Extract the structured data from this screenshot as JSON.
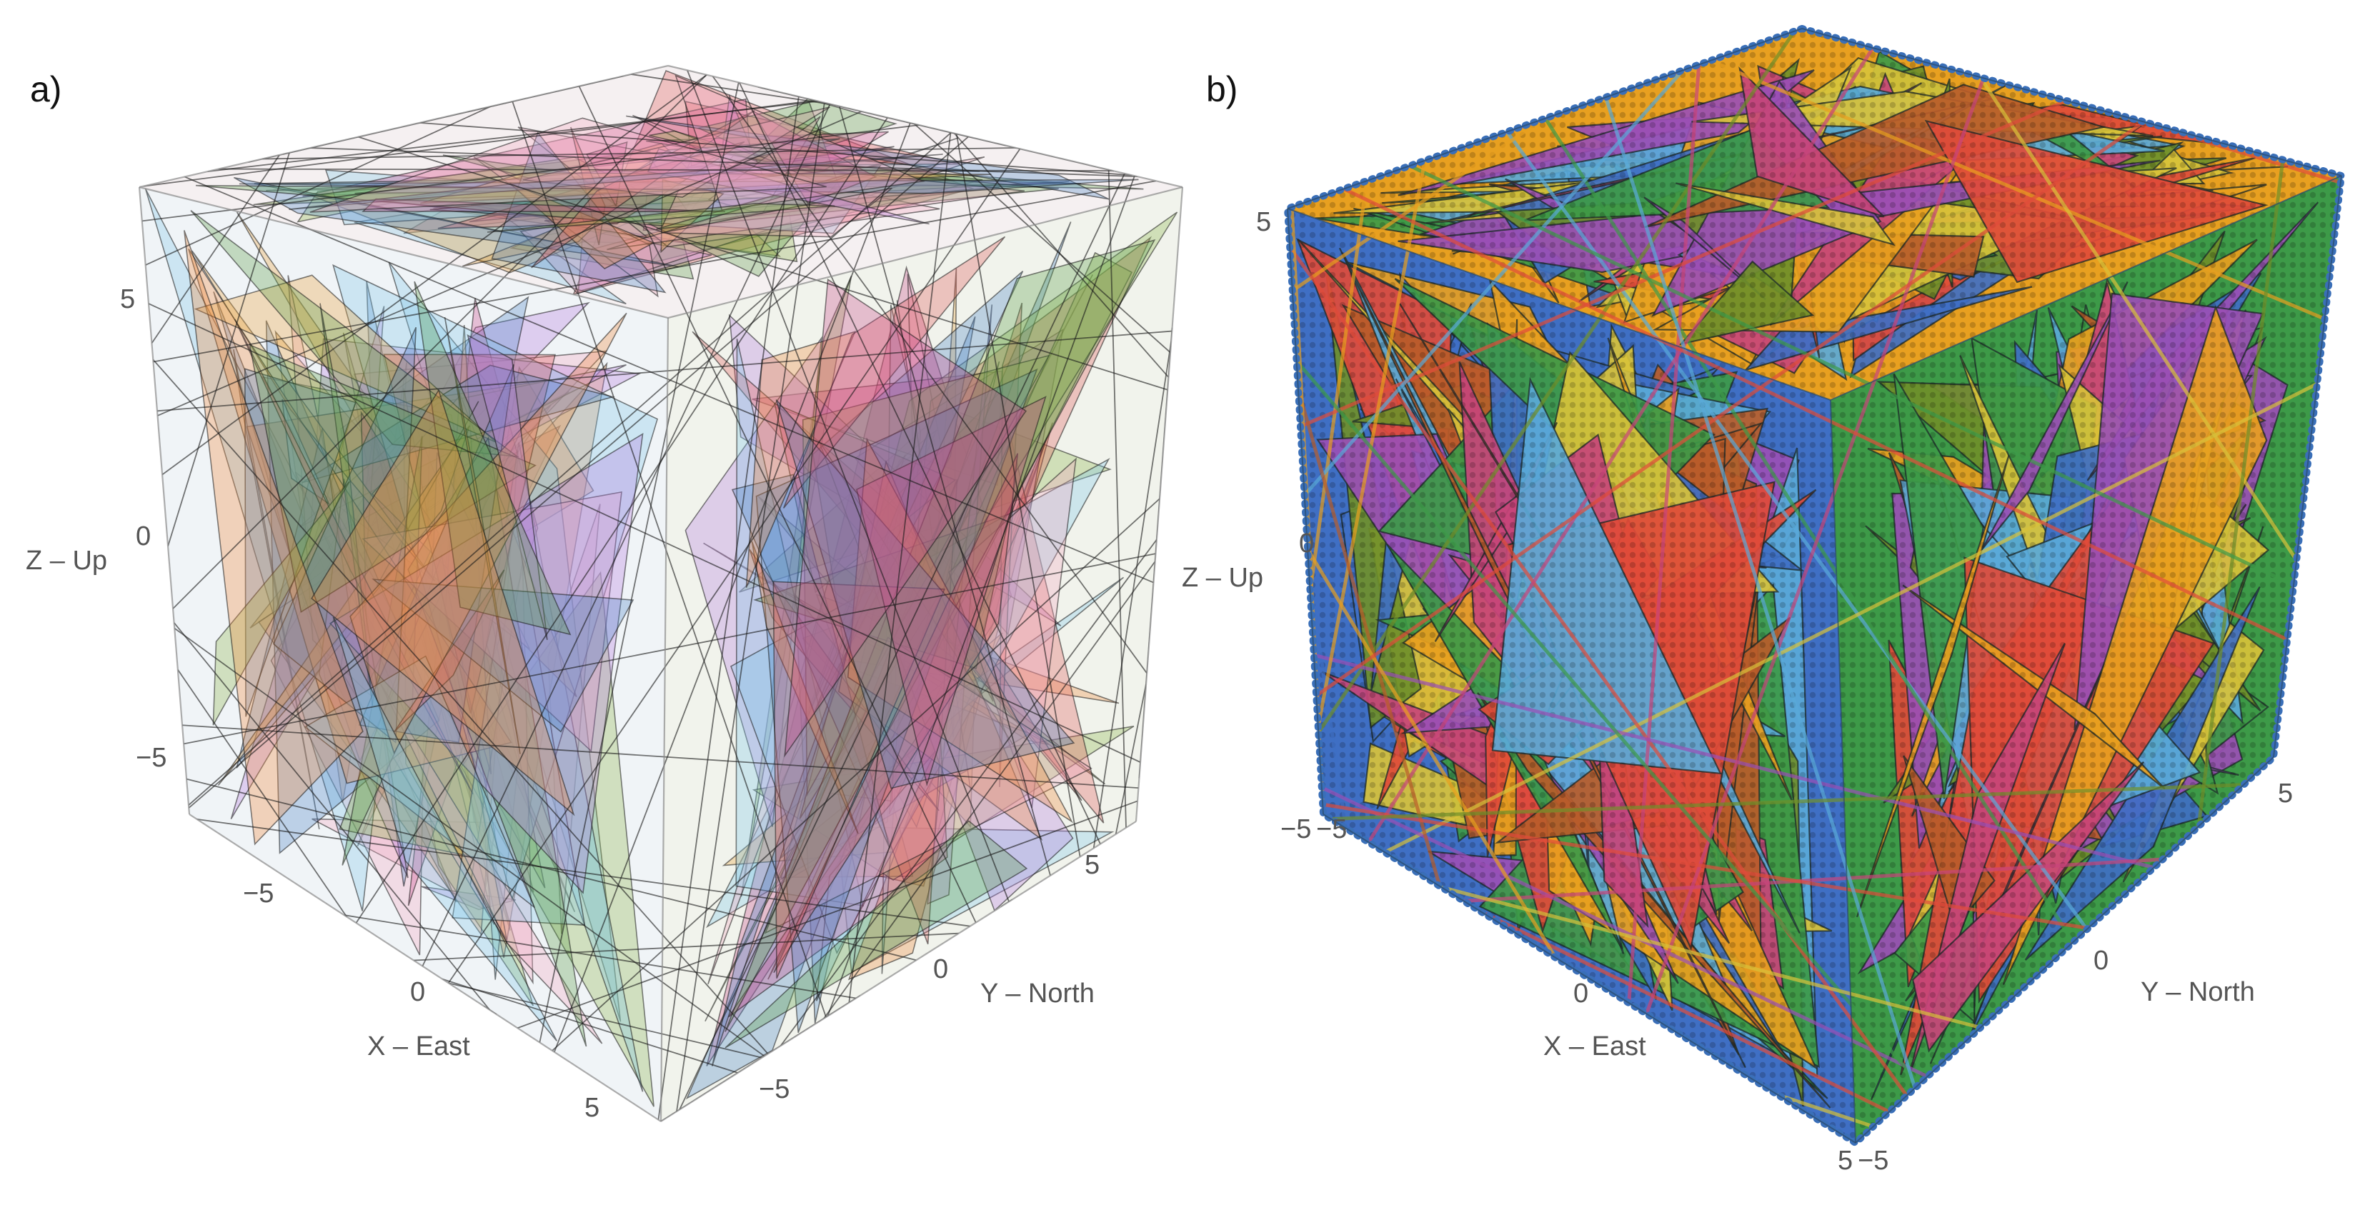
{
  "panels": [
    {
      "label": "a)",
      "z_axis": {
        "title": "Z – Up",
        "ticks": [
          "5",
          "0",
          "−5"
        ]
      },
      "x_axis": {
        "title": "X – East",
        "ticks": [
          "−5",
          "0",
          "5"
        ]
      },
      "y_axis": {
        "title": "Y – North",
        "ticks": [
          "5",
          "0",
          "−5"
        ]
      },
      "style": "translucent-planes",
      "colors": [
        "#e8a33a",
        "#4f86c6",
        "#8bb34a",
        "#e05a5a",
        "#b57be0",
        "#f4a7c1",
        "#7ec8e8",
        "#f08a3c",
        "#5d9e4a",
        "#c94a8c"
      ]
    },
    {
      "label": "b)",
      "z_axis": {
        "title": "Z – Up",
        "ticks": [
          "5",
          "0",
          "−5"
        ]
      },
      "x_axis": {
        "title": "X – East",
        "ticks": [
          "−5",
          "0",
          "5"
        ]
      },
      "y_axis": {
        "title": "Y – North",
        "ticks": [
          "5",
          "0",
          "−5"
        ]
      },
      "style": "opaque-dotted-planes",
      "colors": [
        "#e8a020",
        "#3f6fc4",
        "#3d9a48",
        "#e04b3a",
        "#9a4fb5",
        "#d8c23a",
        "#5aa9d8",
        "#b85c2a",
        "#6f8f2a",
        "#c7457a"
      ]
    }
  ]
}
